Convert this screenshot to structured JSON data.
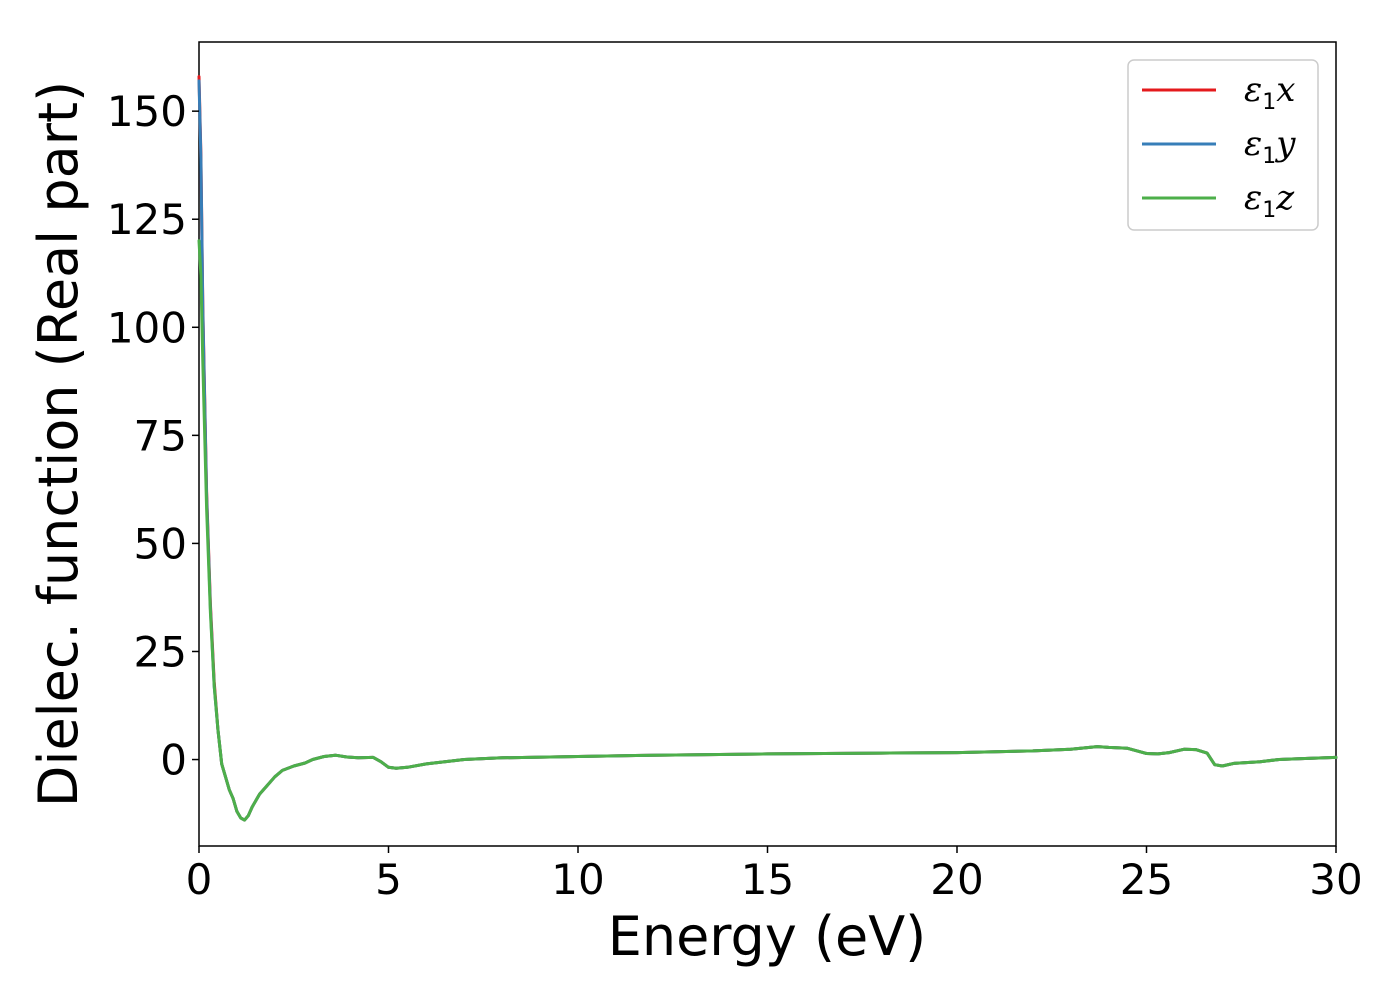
{
  "chart_data": {
    "type": "line",
    "xlabel": "Energy (eV)",
    "ylabel": "Dielec. function (Real part)",
    "xlim": [
      0,
      30
    ],
    "ylim": [
      -20,
      166
    ],
    "xticks": [
      0,
      5,
      10,
      15,
      20,
      25,
      30
    ],
    "yticks": [
      0,
      25,
      50,
      75,
      100,
      125,
      150
    ],
    "grid": false,
    "legend_position": "top-right",
    "series": [
      {
        "name": "ε1x",
        "legend_main": "ε",
        "legend_sub": "1",
        "legend_suffix": "x",
        "color": "#e41a1c",
        "x": [
          0.0,
          0.05,
          0.1,
          0.2,
          0.3,
          0.4,
          0.5,
          0.6,
          0.7,
          0.8,
          0.9,
          1.0,
          1.1,
          1.2,
          1.3,
          1.4,
          1.6,
          1.8,
          2.0,
          2.2,
          2.5,
          2.8,
          3.0,
          3.3,
          3.6,
          3.9,
          4.2,
          4.6,
          4.8,
          5.0,
          5.2,
          5.5,
          6.0,
          7.0,
          8.0,
          10.0,
          12.0,
          15.0,
          18.0,
          20.0,
          22.0,
          23.0,
          23.7,
          24.0,
          24.5,
          25.0,
          25.3,
          25.6,
          26.0,
          26.3,
          26.6,
          26.8,
          27.0,
          27.3,
          28.0,
          28.5,
          29.0,
          30.0
        ],
        "y": [
          158,
          140,
          105,
          62,
          36,
          18,
          7,
          -1,
          -4,
          -7,
          -9,
          -12,
          -13.5,
          -14,
          -13,
          -11,
          -8,
          -6,
          -4,
          -2.5,
          -1.5,
          -0.8,
          0.0,
          0.7,
          1.0,
          0.6,
          0.4,
          0.5,
          -0.5,
          -1.8,
          -2.0,
          -1.8,
          -1.0,
          0.0,
          0.4,
          0.7,
          1.0,
          1.3,
          1.5,
          1.6,
          2.0,
          2.4,
          3.0,
          2.8,
          2.6,
          1.4,
          1.3,
          1.6,
          2.4,
          2.3,
          1.5,
          -1.2,
          -1.5,
          -0.9,
          -0.5,
          0.0,
          0.2,
          0.5
        ]
      },
      {
        "name": "ε1y",
        "legend_main": "ε",
        "legend_sub": "1",
        "legend_suffix": "y",
        "color": "#377eb8",
        "x": [
          0.0,
          0.05,
          0.1,
          0.2,
          0.3,
          0.4,
          0.5,
          0.6,
          0.7,
          0.8,
          0.9,
          1.0,
          1.1,
          1.2,
          1.3,
          1.4,
          1.6,
          1.8,
          2.0,
          2.2,
          2.5,
          2.8,
          3.0,
          3.3,
          3.6,
          3.9,
          4.2,
          4.6,
          4.8,
          5.0,
          5.2,
          5.5,
          6.0,
          7.0,
          8.0,
          10.0,
          12.0,
          15.0,
          18.0,
          20.0,
          22.0,
          23.0,
          23.7,
          24.0,
          24.5,
          25.0,
          25.3,
          25.6,
          26.0,
          26.3,
          26.6,
          26.8,
          27.0,
          27.3,
          28.0,
          28.5,
          29.0,
          30.0
        ],
        "y": [
          157,
          139,
          104,
          61,
          35,
          17,
          7,
          -1,
          -4,
          -7,
          -9,
          -12,
          -13.5,
          -14,
          -13,
          -11,
          -8,
          -6,
          -4,
          -2.5,
          -1.5,
          -0.8,
          0.0,
          0.7,
          1.0,
          0.6,
          0.4,
          0.5,
          -0.5,
          -1.8,
          -2.0,
          -1.8,
          -1.0,
          0.0,
          0.4,
          0.7,
          1.0,
          1.3,
          1.5,
          1.6,
          2.0,
          2.4,
          3.0,
          2.8,
          2.6,
          1.4,
          1.3,
          1.6,
          2.4,
          2.3,
          1.5,
          -1.2,
          -1.5,
          -0.9,
          -0.5,
          0.0,
          0.2,
          0.5
        ]
      },
      {
        "name": "ε1z",
        "legend_main": "ε",
        "legend_sub": "1",
        "legend_suffix": "z",
        "color": "#4daf4a",
        "x": [
          0.0,
          0.05,
          0.1,
          0.2,
          0.3,
          0.4,
          0.5,
          0.6,
          0.7,
          0.8,
          0.9,
          1.0,
          1.1,
          1.2,
          1.3,
          1.4,
          1.6,
          1.8,
          2.0,
          2.2,
          2.5,
          2.8,
          3.0,
          3.3,
          3.6,
          3.9,
          4.2,
          4.6,
          4.8,
          5.0,
          5.2,
          5.5,
          6.0,
          7.0,
          8.0,
          10.0,
          12.0,
          15.0,
          18.0,
          20.0,
          22.0,
          23.0,
          23.7,
          24.0,
          24.5,
          25.0,
          25.3,
          25.6,
          26.0,
          26.3,
          26.6,
          26.8,
          27.0,
          27.3,
          28.0,
          28.5,
          29.0,
          30.0
        ],
        "y": [
          120,
          112,
          92,
          58,
          34,
          17,
          7,
          -1,
          -4,
          -7,
          -9,
          -12,
          -13.5,
          -14,
          -13,
          -11,
          -8,
          -6,
          -4,
          -2.5,
          -1.5,
          -0.8,
          0.0,
          0.7,
          1.0,
          0.6,
          0.4,
          0.5,
          -0.5,
          -1.8,
          -2.0,
          -1.8,
          -1.0,
          0.0,
          0.4,
          0.7,
          1.0,
          1.3,
          1.5,
          1.6,
          2.0,
          2.4,
          3.0,
          2.8,
          2.6,
          1.4,
          1.3,
          1.6,
          2.4,
          2.3,
          1.5,
          -1.2,
          -1.5,
          -0.9,
          -0.5,
          0.0,
          0.2,
          0.5
        ]
      }
    ]
  }
}
